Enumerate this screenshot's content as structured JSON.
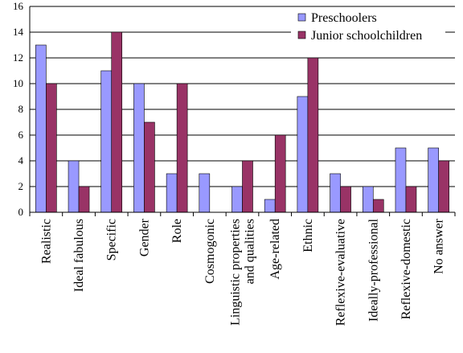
{
  "chart_data": {
    "type": "bar",
    "title": "",
    "xlabel": "",
    "ylabel": "",
    "ylim": [
      0,
      16
    ],
    "yticks": [
      0,
      2,
      4,
      6,
      8,
      10,
      12,
      14,
      16
    ],
    "grid": "horizontal",
    "legend_position": "top-right",
    "categories": [
      "Realistic",
      "Ideal fabulous",
      "Specific",
      "Gender",
      "Role",
      "Cosmogonic",
      "Linguistic properties|and qualities",
      "Age-related",
      "Ethnic",
      "Reflexive-evaluative",
      "Ideally-professional",
      "Reflexive-domestic",
      "No answer"
    ],
    "series": [
      {
        "name": "Preschoolers",
        "color": "#9999ff",
        "values": [
          13,
          4,
          11,
          10,
          3,
          3,
          2,
          1,
          9,
          3,
          2,
          5,
          5
        ]
      },
      {
        "name": "Junior schoolchildren",
        "color": "#993366",
        "values": [
          10,
          2,
          14,
          7,
          10,
          0,
          4,
          6,
          12,
          2,
          1,
          2,
          4
        ]
      }
    ]
  }
}
